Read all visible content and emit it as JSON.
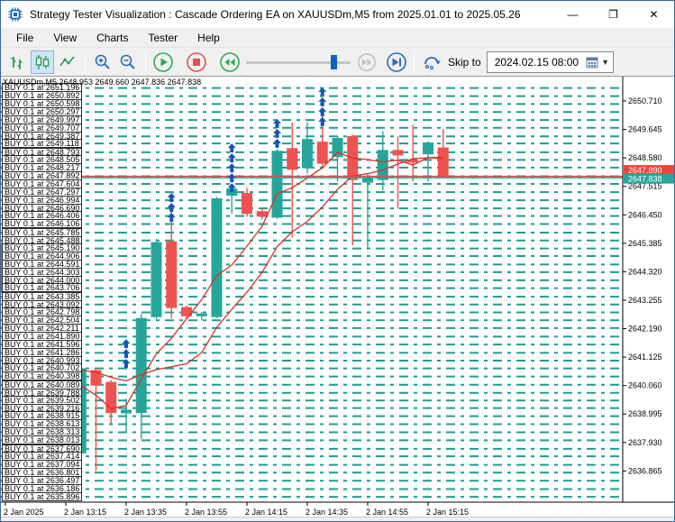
{
  "window": {
    "title": "Strategy Tester Visualization : Cascade Ordering EA on XAUUSDm,M5 from 2025.01.01 to 2025.05.26",
    "controls": {
      "minimize": "—",
      "maximize": "❐",
      "close": "✕"
    }
  },
  "menu": {
    "items": [
      "File",
      "View",
      "Charts",
      "Tester",
      "Help"
    ]
  },
  "toolbar": {
    "icons": [
      "bars-chart-mode",
      "candles-chart-mode",
      "line-chart-mode",
      "zoom-in",
      "zoom-out",
      "play",
      "stop",
      "rewind",
      "speed-slider",
      "fast-forward",
      "skip-to-end",
      "restart-loop"
    ],
    "selected_mode": "candles-chart-mode",
    "skip_to_label": "Skip to",
    "date_value": "2024.02.15 08:00",
    "slider_value": 0.86
  },
  "chart": {
    "symbol_line": "XAUUSDm,M5 2648.953 2649.660 2647.836 2647.838",
    "buy_label_prefix": "BUY 0.1 at ",
    "buy_orders": [
      "2651.196",
      "2650.892",
      "2650.598",
      "2650.297",
      "2649.997",
      "2649.707",
      "2649.387",
      "2649.118",
      "2648.793",
      "2648.505",
      "2648.217",
      "2647.892",
      "2647.604",
      "2647.297",
      "2646.994",
      "2646.690",
      "2646.406",
      "2646.106",
      "2645.785",
      "2645.488",
      "2645.190",
      "2644.906",
      "2644.591",
      "2644.303",
      "2644.000",
      "2643.706",
      "2643.385",
      "2643.092",
      "2642.798",
      "2642.504",
      "2642.211",
      "2641.890",
      "2641.596",
      "2641.286",
      "2640.993",
      "2640.702",
      "2640.398",
      "2640.089",
      "2639.788",
      "2639.502",
      "2639.216",
      "2638.915",
      "2638.613",
      "2638.313",
      "2638.013",
      "2637.690",
      "2637.414",
      "2637.094",
      "2636.801",
      "2636.497",
      "2636.186",
      "2635.896"
    ],
    "badges": {
      "red": "2647.890",
      "teal": "2647.838"
    },
    "colors": {
      "bull": "#26a69a",
      "bear": "#ef5350",
      "buy_level_line": "#1f9c94",
      "ma_line": "#d93025",
      "hline_red": "#f44336",
      "hline_teal": "#26a69a",
      "arrow": "#1456b8",
      "grid": "#d7d7d7",
      "axis": "#000000"
    }
  },
  "chart_data": {
    "type": "candlestick",
    "title": "XAUUSDm,M5",
    "ylim": [
      2635.6,
      2651.6
    ],
    "price_ticks": [
      2650.71,
      2649.645,
      2648.58,
      2647.515,
      2646.45,
      2645.385,
      2644.32,
      2643.255,
      2642.19,
      2641.125,
      2640.06,
      2638.995,
      2637.93,
      2636.865
    ],
    "time_ticks": [
      {
        "bar": 0,
        "label": "2 Jan 2025"
      },
      {
        "bar": 4,
        "label": "2 Jan 13:15"
      },
      {
        "bar": 8,
        "label": "2 Jan 13:35"
      },
      {
        "bar": 12,
        "label": "2 Jan 13:55"
      },
      {
        "bar": 16,
        "label": "2 Jan 14:15"
      },
      {
        "bar": 20,
        "label": "2 Jan 14:35"
      },
      {
        "bar": 24,
        "label": "2 Jan 14:55"
      },
      {
        "bar": 28,
        "label": "2 Jan 15:15"
      }
    ],
    "bars": [
      {
        "time": "12:55",
        "o": 2645.37,
        "h": 2645.45,
        "l": 2643.45,
        "c": 2643.53
      },
      {
        "time": "13:00",
        "o": 2643.25,
        "h": 2643.42,
        "l": 2640.86,
        "c": 2641.89
      },
      {
        "time": "13:05",
        "o": 2641.03,
        "h": 2641.78,
        "l": 2639.15,
        "c": 2641.54
      },
      {
        "time": "13:10",
        "o": 2641.85,
        "h": 2641.92,
        "l": 2638.5,
        "c": 2638.57
      },
      {
        "time": "13:15",
        "o": 2638.54,
        "h": 2638.62,
        "l": 2637.27,
        "c": 2637.61
      },
      {
        "time": "13:20",
        "o": 2637.54,
        "h": 2640.76,
        "l": 2637.3,
        "c": 2640.69
      },
      {
        "time": "13:25",
        "o": 2640.62,
        "h": 2640.72,
        "l": 2636.86,
        "c": 2640.08
      },
      {
        "time": "13:30",
        "o": 2640.18,
        "h": 2640.26,
        "l": 2638.64,
        "c": 2639.05
      },
      {
        "time": "13:35",
        "o": 2639.04,
        "h": 2639.56,
        "l": 2638.3,
        "c": 2639.14
      },
      {
        "time": "13:40",
        "o": 2639.05,
        "h": 2642.74,
        "l": 2638.06,
        "c": 2642.57
      },
      {
        "time": "13:45",
        "o": 2642.64,
        "h": 2645.55,
        "l": 2642.54,
        "c": 2645.41
      },
      {
        "time": "13:50",
        "o": 2645.44,
        "h": 2646.74,
        "l": 2642.57,
        "c": 2642.98
      },
      {
        "time": "13:55",
        "o": 2642.98,
        "h": 2643.05,
        "l": 2642.55,
        "c": 2642.67
      },
      {
        "time": "14:00",
        "o": 2642.67,
        "h": 2642.82,
        "l": 2642.5,
        "c": 2642.74
      },
      {
        "time": "14:05",
        "o": 2642.64,
        "h": 2647.12,
        "l": 2642.58,
        "c": 2647.05
      },
      {
        "time": "14:10",
        "o": 2647.18,
        "h": 2647.55,
        "l": 2646.5,
        "c": 2647.42
      },
      {
        "time": "14:15",
        "o": 2647.25,
        "h": 2647.45,
        "l": 2646.38,
        "c": 2646.5
      },
      {
        "time": "14:20",
        "o": 2646.57,
        "h": 2646.72,
        "l": 2646.28,
        "c": 2646.4
      },
      {
        "time": "14:25",
        "o": 2646.36,
        "h": 2648.92,
        "l": 2646.3,
        "c": 2648.83
      },
      {
        "time": "14:30",
        "o": 2648.93,
        "h": 2649.9,
        "l": 2645.6,
        "c": 2648.15
      },
      {
        "time": "14:35",
        "o": 2648.21,
        "h": 2649.9,
        "l": 2648.0,
        "c": 2649.27
      },
      {
        "time": "14:40",
        "o": 2649.17,
        "h": 2650.23,
        "l": 2648.2,
        "c": 2648.38
      },
      {
        "time": "14:45",
        "o": 2648.63,
        "h": 2649.4,
        "l": 2647.7,
        "c": 2649.31
      },
      {
        "time": "14:50",
        "o": 2649.38,
        "h": 2649.45,
        "l": 2645.31,
        "c": 2647.77
      },
      {
        "time": "14:55",
        "o": 2647.67,
        "h": 2647.95,
        "l": 2645.2,
        "c": 2647.84
      },
      {
        "time": "15:00",
        "o": 2647.77,
        "h": 2649.58,
        "l": 2647.36,
        "c": 2648.86
      },
      {
        "time": "15:05",
        "o": 2648.86,
        "h": 2649.38,
        "l": 2646.68,
        "c": 2648.69
      },
      {
        "time": "15:10",
        "o": 2648.49,
        "h": 2649.82,
        "l": 2647.7,
        "c": 2648.42
      },
      {
        "time": "15:15",
        "o": 2648.73,
        "h": 2649.2,
        "l": 2647.7,
        "c": 2649.14
      },
      {
        "time": "15:20",
        "o": 2648.953,
        "h": 2649.66,
        "l": 2647.836,
        "c": 2647.838
      }
    ],
    "buy_arrow_markers": [
      {
        "bar": 8,
        "count": 3,
        "top_price": 2641.8
      },
      {
        "bar": 11,
        "count": 3,
        "top_price": 2647.27
      },
      {
        "bar": 15,
        "count": 5,
        "top_price": 2649.12
      },
      {
        "bar": 18,
        "count": 3,
        "top_price": 2650.04
      },
      {
        "bar": 21,
        "count": 4,
        "top_price": 2651.22
      }
    ],
    "hlines": [
      {
        "price": 2647.89,
        "color_key": "hline_red"
      },
      {
        "price": 2647.838,
        "color_key": "hline_teal"
      }
    ],
    "indicators": [
      {
        "name": "MA fast",
        "period": 5,
        "color": "#d93025"
      },
      {
        "name": "MA slow",
        "period": 10,
        "color": "#d93025"
      }
    ],
    "legend_position": "none",
    "grid": true
  }
}
